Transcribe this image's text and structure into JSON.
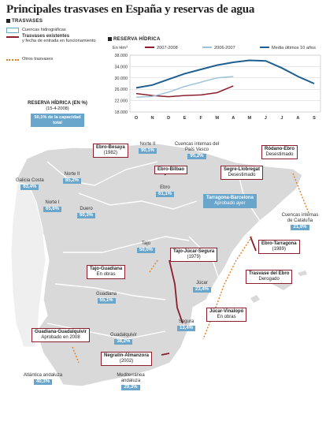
{
  "title": "Principales trasvases en España y reservas de agua",
  "sections": {
    "trasvases": "TRASVASES",
    "reserva": "RESERVA HÍDRICA"
  },
  "legend": {
    "cuencas": "Cuencas hidrográficas",
    "existentes_bold": "Trasvases existentes",
    "existentes_rest": "y fecha de entrada en funcionamiento",
    "otros": "Otros trasvases"
  },
  "reserva_box": {
    "heading": "RESERVA HÍDRICA (EN %)",
    "date": "(15-4-2008)",
    "total": "50,1% de la capacidad total"
  },
  "colors": {
    "blue": "#6aa5cc",
    "red": "#8a1e2c",
    "orange": "#e0812a",
    "land": "#d9d9d9",
    "lightblue": "#9fc3d9",
    "darkblue": "#1f5f8f"
  },
  "chart_data": {
    "type": "line",
    "ylabel": "En Hm³",
    "categories": [
      "O",
      "N",
      "D",
      "E",
      "F",
      "M",
      "A",
      "M",
      "J",
      "J",
      "A",
      "S"
    ],
    "yticks": [
      "38.000",
      "34.000",
      "30.000",
      "26.000",
      "22.000",
      "18.000"
    ],
    "ylim": [
      18000,
      38000
    ],
    "grid": true,
    "series": [
      {
        "name": "2007-2008",
        "color": "#8a1e2c",
        "values": [
          24500,
          23800,
          23400,
          23800,
          24000,
          24800,
          27200,
          null,
          null,
          null,
          null,
          null
        ]
      },
      {
        "name": "2006-2007",
        "color": "#9fc3d9",
        "values": [
          23200,
          23500,
          25000,
          27000,
          28500,
          30000,
          30500,
          null,
          null,
          null,
          null,
          null
        ]
      },
      {
        "name": "Media últimos 10 años",
        "color": "#1f5f8f",
        "values": [
          26500,
          27500,
          29500,
          31500,
          33000,
          34500,
          35500,
          36200,
          36000,
          33500,
          30500,
          28000
        ]
      }
    ]
  },
  "regions": [
    {
      "name": "Galicia Costa",
      "pct": "63,4%"
    },
    {
      "name": "Norte II",
      "pct": "85,2%"
    },
    {
      "name": "Norte II",
      "pct": "90,1%"
    },
    {
      "name": "Cuencas internas del País Vasco",
      "pct": "95,2%"
    },
    {
      "name": "Norte I",
      "pct": "65,6%"
    },
    {
      "name": "Duero",
      "pct": "60,3%"
    },
    {
      "name": "Ebro",
      "pct": "61,1%"
    },
    {
      "name": "Cuencas internas de Cataluña",
      "pct": "21,6%"
    },
    {
      "name": "Tajo",
      "pct": "50,0%"
    },
    {
      "name": "Guadiana",
      "pct": "55,1%"
    },
    {
      "name": "Júcar",
      "pct": "23,4%"
    },
    {
      "name": "Segura",
      "pct": "13,4%"
    },
    {
      "name": "Guadalquivir",
      "pct": "38,2%"
    },
    {
      "name": "Atlántica andaluza",
      "pct": "40,3%"
    },
    {
      "name": "Mediterránea andaluza",
      "pct": "29,3%"
    }
  ],
  "transfers": [
    {
      "name": "Ebro-Besaya",
      "note": "(1982)"
    },
    {
      "name": "Ebro-Bilbao",
      "note": ""
    },
    {
      "name": "Ródano-Ebro",
      "note": "Desestimado"
    },
    {
      "name": "Segre-Llobregat",
      "note": "Desestimado"
    },
    {
      "name": "Tarragona-Barcelona",
      "note": "Aprobado ayer"
    },
    {
      "name": "Ebro-Tarragona",
      "note": "(1989)"
    },
    {
      "name": "Tajo-Júcar-Segura",
      "note": "(1979)"
    },
    {
      "name": "Tajo-Guadiana",
      "note": "En obras"
    },
    {
      "name": "Trasvase del Ebro",
      "note": "Derogado"
    },
    {
      "name": "Júcar-Vinalopó",
      "note": "En obras"
    },
    {
      "name": "Guadiana-Guadalquivir",
      "note": "Aprobado en 2008"
    },
    {
      "name": "Negratín-Almanzora",
      "note": "(2002)"
    }
  ]
}
